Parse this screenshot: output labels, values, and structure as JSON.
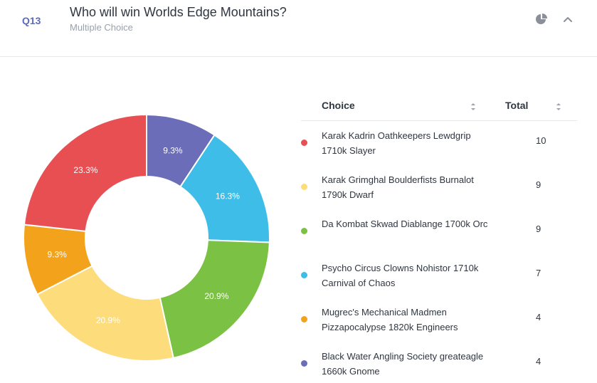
{
  "question": {
    "number": "Q13",
    "title": "Who will win Worlds Edge Mountains?",
    "type": "Multiple Choice",
    "icons": {
      "chart_toggle": "pie-chart-icon",
      "collapse": "chevron-up-icon"
    }
  },
  "table": {
    "headers": {
      "choice": "Choice",
      "total": "Total"
    },
    "rows": [
      {
        "choice": "Karak Kadrin Oathkeepers Lewdgrip 1710k Slayer",
        "total": "10",
        "color": "#e84f53"
      },
      {
        "choice": "Karak Grimghal Boulderfists Burnalot 1790k Dwarf",
        "total": "9",
        "color": "#fcdc7b"
      },
      {
        "choice": "Da Kombat Skwad Diablange 1700k Orc",
        "total": "9",
        "color": "#7bc143"
      },
      {
        "choice": "Psycho Circus Clowns Nohistor 1710k Carnival of Chaos",
        "total": "7",
        "color": "#3dbde8"
      },
      {
        "choice": "Mugrec's Mechanical Madmen Pizzapocalypse 1820k Engineers",
        "total": "4",
        "color": "#f3a21c"
      },
      {
        "choice": "Black Water Angling Society greateagle 1660k Gnome",
        "total": "4",
        "color": "#6b6db8"
      }
    ]
  },
  "chart_data": {
    "type": "pie",
    "style": "donut",
    "start": "top",
    "direction": "clockwise",
    "slices": [
      {
        "label": "Black Water Angling Society greateagle 1660k Gnome",
        "value": 9.3,
        "text": "9.3%",
        "color": "#6b6db8"
      },
      {
        "label": "Psycho Circus Clowns Nohistor 1710k Carnival of Chaos",
        "value": 16.3,
        "text": "16.3%",
        "color": "#3dbde8"
      },
      {
        "label": "Da Kombat Skwad Diablange 1700k Orc",
        "value": 20.9,
        "text": "20.9%",
        "color": "#7bc143"
      },
      {
        "label": "Karak Grimghal Boulderfists Burnalot 1790k Dwarf",
        "value": 20.9,
        "text": "20.9%",
        "color": "#fcdc7b"
      },
      {
        "label": "Mugrec's Mechanical Madmen Pizzapocalypse 1820k Engineers",
        "value": 9.3,
        "text": "9.3%",
        "color": "#f3a21c"
      },
      {
        "label": "Karak Kadrin Oathkeepers Lewdgrip 1710k Slayer",
        "value": 23.3,
        "text": "23.3%",
        "color": "#e84f53"
      }
    ]
  }
}
